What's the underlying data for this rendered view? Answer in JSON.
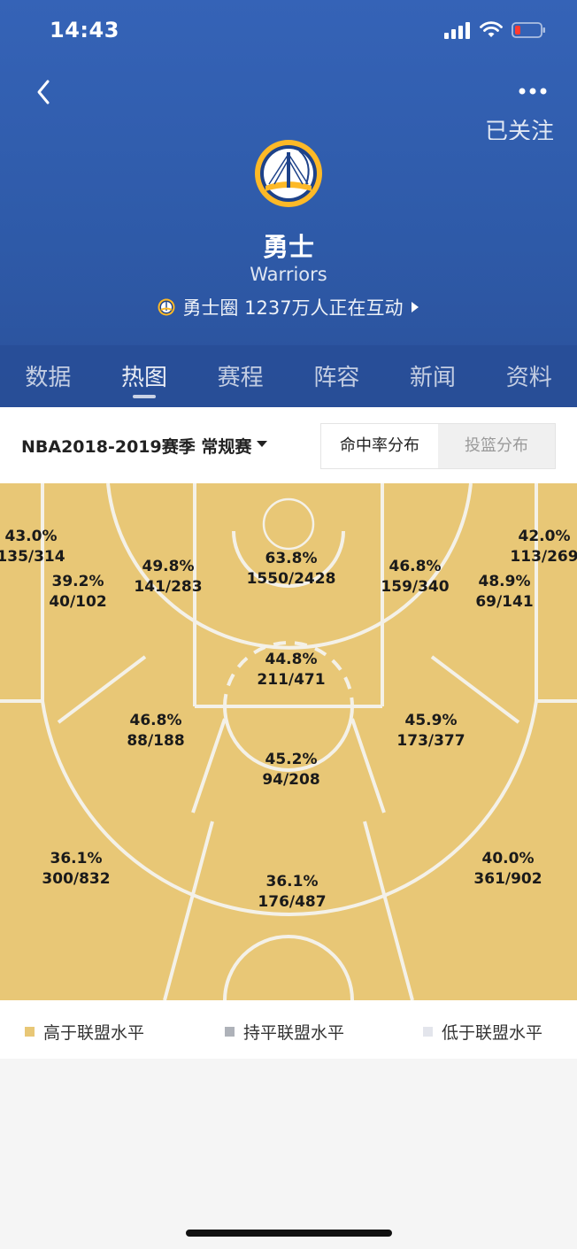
{
  "status_bar": {
    "time": "14:43"
  },
  "header": {
    "follow_label": "已关注",
    "team_name": "勇士",
    "team_name_en": "Warriors",
    "community_text": "勇士圈 1237万人正在互动"
  },
  "tabs": [
    {
      "label": "数据",
      "active": false
    },
    {
      "label": "热图",
      "active": true
    },
    {
      "label": "赛程",
      "active": false
    },
    {
      "label": "阵容",
      "active": false
    },
    {
      "label": "新闻",
      "active": false
    },
    {
      "label": "资料",
      "active": false
    }
  ],
  "filter": {
    "season_label": "NBA2018-2019赛季 常规赛",
    "seg_fg_label": "命中率分布",
    "seg_shot_label": "投篮分布"
  },
  "zones": {
    "left_corner_three": {
      "pct": "43.0%",
      "made_att": "135/314"
    },
    "left_baseline_mid": {
      "pct": "39.2%",
      "made_att": "40/102"
    },
    "left_elbow_mid": {
      "pct": "49.8%",
      "made_att": "141/283"
    },
    "restricted_area": {
      "pct": "63.8%",
      "made_att": "1550/2428"
    },
    "right_elbow_mid": {
      "pct": "46.8%",
      "made_att": "159/340"
    },
    "right_baseline_mid": {
      "pct": "48.9%",
      "made_att": "69/141"
    },
    "right_corner_three": {
      "pct": "42.0%",
      "made_att": "113/269"
    },
    "paint_non_ra": {
      "pct": "44.8%",
      "made_att": "211/471"
    },
    "left_wing_mid": {
      "pct": "46.8%",
      "made_att": "88/188"
    },
    "top_key_mid": {
      "pct": "45.2%",
      "made_att": "94/208"
    },
    "right_wing_mid": {
      "pct": "45.9%",
      "made_att": "173/377"
    },
    "left_wing_three": {
      "pct": "36.1%",
      "made_att": "300/832"
    },
    "top_three": {
      "pct": "36.1%",
      "made_att": "176/487"
    },
    "right_wing_three": {
      "pct": "40.0%",
      "made_att": "361/902"
    }
  },
  "legend": {
    "above": {
      "label": "高于联盟水平",
      "color": "#e8c776"
    },
    "equal": {
      "label": "持平联盟水平",
      "color": "#aeb2b9"
    },
    "below": {
      "label": "低于联盟水平",
      "color": "#e3e5ec"
    }
  },
  "colors": {
    "header_blue": "#3563b7",
    "court_above_league": "#e8c776",
    "court_lines": "#f4f1e8"
  }
}
